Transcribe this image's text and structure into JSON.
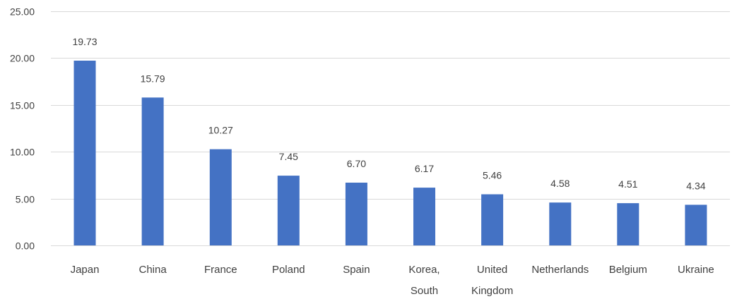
{
  "chart_data": {
    "type": "bar",
    "categories": [
      "Japan",
      "China",
      "France",
      "Poland",
      "Spain",
      "Korea, South",
      "United Kingdom",
      "Netherlands",
      "Belgium",
      "Ukraine"
    ],
    "category_lines": [
      [
        "Japan"
      ],
      [
        "China"
      ],
      [
        "France"
      ],
      [
        "Poland"
      ],
      [
        "Spain"
      ],
      [
        "Korea,",
        "South"
      ],
      [
        "United",
        "Kingdom"
      ],
      [
        "Netherlands"
      ],
      [
        "Belgium"
      ],
      [
        "Ukraine"
      ]
    ],
    "values": [
      19.73,
      15.79,
      10.27,
      7.45,
      6.7,
      6.17,
      5.46,
      4.58,
      4.51,
      4.34
    ],
    "value_labels": [
      "19.73",
      "15.79",
      "10.27",
      "7.45",
      "6.70",
      "6.17",
      "5.46",
      "4.58",
      "4.51",
      "4.34"
    ],
    "yticks": [
      0,
      5,
      10,
      15,
      20,
      25
    ],
    "ytick_labels": [
      "0.00",
      "5.00",
      "10.00",
      "15.00",
      "20.00",
      "25.00"
    ],
    "ylim": [
      0,
      25
    ],
    "grid": true,
    "bar_color": "#4472c4",
    "legend": "none"
  }
}
